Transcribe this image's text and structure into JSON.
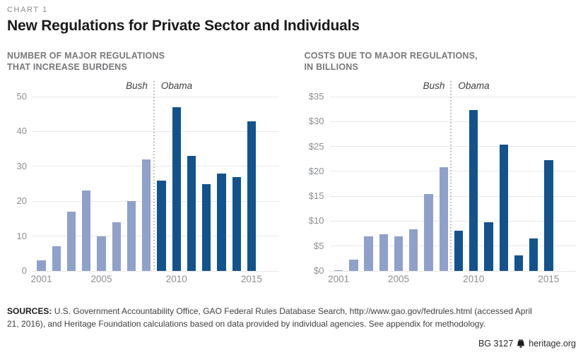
{
  "header": {
    "eyebrow": "CHART 1",
    "title": "New Regulations for Private Sector and Individuals"
  },
  "colors": {
    "bush_bar": "#8fa1cb",
    "obama_bar": "#12538e",
    "gridline": "#e8e8e8",
    "axis_text": "#8c8f93",
    "subtitle_text": "#77787b"
  },
  "chart_data": [
    {
      "type": "bar",
      "title": "NUMBER OF MAJOR REGULATIONS THAT INCREASE BURDENS",
      "title_lines": [
        "NUMBER OF MAJOR REGULATIONS",
        "THAT INCREASE BURDENS"
      ],
      "categories": [
        "2001",
        "2002",
        "2003",
        "2004",
        "2005",
        "2006",
        "2007",
        "2008",
        "2009",
        "2010",
        "2011",
        "2012",
        "2013",
        "2014",
        "2015"
      ],
      "values": [
        3,
        7,
        17,
        23,
        10,
        14,
        20,
        32,
        26,
        47,
        33,
        25,
        28,
        27,
        43
      ],
      "eras": [
        {
          "name": "Bush",
          "from": "2001",
          "to": "2008",
          "color": "#8fa1cb"
        },
        {
          "name": "Obama",
          "from": "2009",
          "to": "2015",
          "color": "#12538e"
        }
      ],
      "separator_after_category": "2008",
      "era_labels": [
        "Bush",
        "Obama"
      ],
      "ylim": [
        0,
        50
      ],
      "y_tick_values": [
        0,
        10,
        20,
        30,
        40,
        50
      ],
      "y_tick_labels": [
        "0",
        "10",
        "20",
        "30",
        "40",
        "50"
      ],
      "x_tick_categories": [
        "2001",
        "2005",
        "2010",
        "2015"
      ],
      "grid": true,
      "legend_position": "none",
      "xlabel": "",
      "ylabel": ""
    },
    {
      "type": "bar",
      "title": "COSTS DUE TO MAJOR REGULATIONS, IN BILLIONS",
      "title_lines": [
        "COSTS DUE TO MAJOR REGULATIONS,",
        "IN BILLIONS"
      ],
      "categories": [
        "2001",
        "2002",
        "2003",
        "2004",
        "2005",
        "2006",
        "2007",
        "2008",
        "2009",
        "2010",
        "2011",
        "2012",
        "2013",
        "2014",
        "2015"
      ],
      "values": [
        0.1,
        2.3,
        6.9,
        7.3,
        6.9,
        8.3,
        15.4,
        20.9,
        8.1,
        32.3,
        9.8,
        25.4,
        3.1,
        6.5,
        22.3
      ],
      "eras": [
        {
          "name": "Bush",
          "from": "2001",
          "to": "2008",
          "color": "#8fa1cb"
        },
        {
          "name": "Obama",
          "from": "2009",
          "to": "2015",
          "color": "#12538e"
        }
      ],
      "separator_after_category": "2008",
      "era_labels": [
        "Bush",
        "Obama"
      ],
      "ylim": [
        0,
        35
      ],
      "y_tick_values": [
        0,
        5,
        10,
        15,
        20,
        25,
        30,
        35
      ],
      "y_tick_labels": [
        "$0",
        "$5",
        "$10",
        "$15",
        "$20",
        "$25",
        "$30",
        "$35"
      ],
      "x_tick_categories": [
        "2001",
        "2005",
        "2010",
        "2015"
      ],
      "grid": true,
      "legend_position": "none",
      "xlabel": "",
      "ylabel": ""
    }
  ],
  "footer": {
    "sources_label": "SOURCES:",
    "sources_text": "U.S. Government Accountability Office, GAO Federal Rules Database Search, http://www.gao.gov/fedrules.html (accessed April 21, 2016), and Heritage Foundation calculations based on data provided by individual agencies. See appendix for methodology.",
    "credit_id": "BG 3127",
    "credit_site": "heritage.org",
    "bell_icon": "liberty-bell"
  }
}
